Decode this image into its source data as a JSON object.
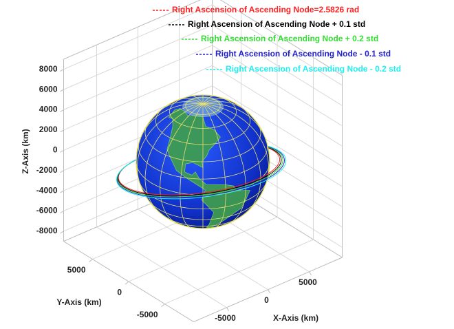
{
  "chart_data": {
    "type": "orbit3d",
    "series": [
      {
        "name": "Right Ascension of Ascending Node=2.5826 rad",
        "color": "#ff2020"
      },
      {
        "name": "Right Ascension of Ascending Node + 0.1 std",
        "color": "#000000"
      },
      {
        "name": "Right Ascension of Ascending Node + 0.2 std",
        "color": "#33dd33"
      },
      {
        "name": "Right Ascension of Ascending Node - 0.1 std",
        "color": "#2222cc"
      },
      {
        "name": "Right Ascension of Ascending Node - 0.2 std",
        "color": "#22eeee"
      }
    ],
    "xlabel": "X-Axis (km)",
    "ylabel": "Y-Axis (km)",
    "zlabel": "Z-Axis (km)",
    "xlim": [
      -9000,
      9000
    ],
    "ylim": [
      -9000,
      9000
    ],
    "zlim": [
      -9000,
      9000
    ],
    "xticks": [
      -5000,
      0,
      5000
    ],
    "yticks": [
      -5000,
      0,
      5000
    ],
    "zticks": [
      -8000,
      -6000,
      -4000,
      -2000,
      0,
      2000,
      4000,
      6000,
      8000
    ],
    "grid": true
  }
}
